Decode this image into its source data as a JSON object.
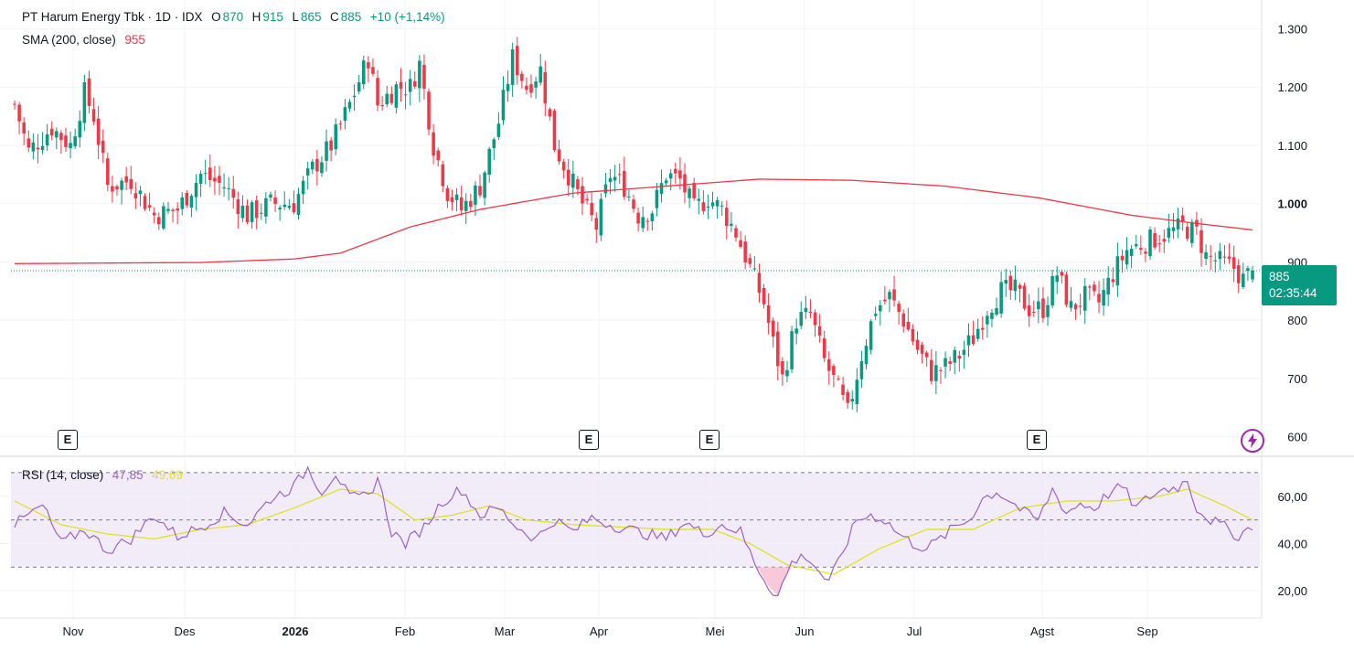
{
  "header": {
    "symbol": "PT Harum Energy Tbk · 1D · IDX",
    "o_label": "O",
    "o_value": "870",
    "h_label": "H",
    "h_value": "915",
    "l_label": "L",
    "l_value": "865",
    "c_label": "C",
    "c_value": "885",
    "change": "+10 (+1,14%)"
  },
  "sma": {
    "label": "SMA (200, close)",
    "value": "955"
  },
  "rsi": {
    "label": "RSI (14, close)",
    "value": "47,85",
    "ma_value": "49,69"
  },
  "last_price": {
    "price": "885",
    "countdown": "02:35:44"
  },
  "earnings_badges": [
    "E",
    "E",
    "E",
    "E"
  ],
  "colors": {
    "up": "#089981",
    "down": "#f23645",
    "sma": "#f23645",
    "rsi": "#9c62c7",
    "rsi_ma": "#e0e22a",
    "rsi_band": "#ede7f6"
  },
  "chart_data": {
    "type": "candlestick",
    "y_ticks": [
      "1.300",
      "1.200",
      "1.100",
      "1.000",
      "900",
      "800",
      "700",
      "600"
    ],
    "ylim": [
      590,
      1340
    ],
    "x_ticks": [
      "Nov",
      "Des",
      "2026",
      "Feb",
      "Mar",
      "Apr",
      "Mei",
      "Jun",
      "Jul",
      "Agst",
      "Sep"
    ],
    "rsi_ticks": [
      "60,00",
      "40,00",
      "20,00"
    ],
    "rsi_ylim": [
      10,
      75
    ],
    "rsi_bands": [
      70,
      50,
      30
    ],
    "price_anchors": [
      {
        "day": 0,
        "close": 1170
      },
      {
        "day": 3,
        "close": 1090
      },
      {
        "day": 8,
        "close": 1130
      },
      {
        "day": 12,
        "close": 1100
      },
      {
        "day": 15,
        "close": 1190
      },
      {
        "day": 17,
        "close": 1150
      },
      {
        "day": 20,
        "close": 1030
      },
      {
        "day": 25,
        "close": 1040
      },
      {
        "day": 30,
        "close": 980
      },
      {
        "day": 35,
        "close": 990
      },
      {
        "day": 40,
        "close": 1050
      },
      {
        "day": 45,
        "close": 1030
      },
      {
        "day": 50,
        "close": 980
      },
      {
        "day": 55,
        "close": 1000
      },
      {
        "day": 60,
        "close": 1000
      },
      {
        "day": 64,
        "close": 1060
      },
      {
        "day": 68,
        "close": 1100
      },
      {
        "day": 72,
        "close": 1170
      },
      {
        "day": 76,
        "close": 1250
      },
      {
        "day": 78,
        "close": 1170
      },
      {
        "day": 82,
        "close": 1200
      },
      {
        "day": 85,
        "close": 1200
      },
      {
        "day": 87,
        "close": 1240
      },
      {
        "day": 90,
        "close": 1100
      },
      {
        "day": 93,
        "close": 1020
      },
      {
        "day": 96,
        "close": 990
      },
      {
        "day": 100,
        "close": 1030
      },
      {
        "day": 104,
        "close": 1140
      },
      {
        "day": 107,
        "close": 1250
      },
      {
        "day": 110,
        "close": 1200
      },
      {
        "day": 113,
        "close": 1230
      },
      {
        "day": 116,
        "close": 1100
      },
      {
        "day": 119,
        "close": 1050
      },
      {
        "day": 122,
        "close": 1000
      },
      {
        "day": 125,
        "close": 960
      },
      {
        "day": 128,
        "close": 1050
      },
      {
        "day": 131,
        "close": 1030
      },
      {
        "day": 134,
        "close": 980
      },
      {
        "day": 137,
        "close": 990
      },
      {
        "day": 140,
        "close": 1050
      },
      {
        "day": 143,
        "close": 1040
      },
      {
        "day": 146,
        "close": 990
      },
      {
        "day": 149,
        "close": 1010
      },
      {
        "day": 152,
        "close": 990
      },
      {
        "day": 155,
        "close": 950
      },
      {
        "day": 158,
        "close": 890
      },
      {
        "day": 161,
        "close": 830
      },
      {
        "day": 163,
        "close": 760
      },
      {
        "day": 165,
        "close": 700
      },
      {
        "day": 168,
        "close": 800
      },
      {
        "day": 171,
        "close": 810
      },
      {
        "day": 174,
        "close": 730
      },
      {
        "day": 177,
        "close": 680
      },
      {
        "day": 179,
        "close": 640
      },
      {
        "day": 182,
        "close": 740
      },
      {
        "day": 185,
        "close": 820
      },
      {
        "day": 188,
        "close": 840
      },
      {
        "day": 191,
        "close": 800
      },
      {
        "day": 194,
        "close": 750
      },
      {
        "day": 197,
        "close": 710
      },
      {
        "day": 200,
        "close": 720
      },
      {
        "day": 203,
        "close": 740
      },
      {
        "day": 206,
        "close": 770
      },
      {
        "day": 209,
        "close": 820
      },
      {
        "day": 212,
        "close": 850
      },
      {
        "day": 215,
        "close": 850
      },
      {
        "day": 218,
        "close": 820
      },
      {
        "day": 221,
        "close": 820
      },
      {
        "day": 224,
        "close": 880
      },
      {
        "day": 227,
        "close": 820
      },
      {
        "day": 230,
        "close": 840
      },
      {
        "day": 233,
        "close": 830
      },
      {
        "day": 236,
        "close": 880
      },
      {
        "day": 239,
        "close": 920
      },
      {
        "day": 242,
        "close": 930
      },
      {
        "day": 245,
        "close": 940
      },
      {
        "day": 248,
        "close": 950
      },
      {
        "day": 251,
        "close": 960
      },
      {
        "day": 254,
        "close": 950
      },
      {
        "day": 256,
        "close": 910
      },
      {
        "day": 259,
        "close": 900
      },
      {
        "day": 262,
        "close": 890
      },
      {
        "day": 264,
        "close": 870
      },
      {
        "day": 266,
        "close": 885
      }
    ],
    "sma_anchors": [
      {
        "day": 0,
        "value": 897
      },
      {
        "day": 20,
        "value": 898
      },
      {
        "day": 40,
        "value": 899
      },
      {
        "day": 60,
        "value": 905
      },
      {
        "day": 70,
        "value": 915
      },
      {
        "day": 85,
        "value": 960
      },
      {
        "day": 100,
        "value": 990
      },
      {
        "day": 120,
        "value": 1018
      },
      {
        "day": 140,
        "value": 1030
      },
      {
        "day": 160,
        "value": 1042
      },
      {
        "day": 180,
        "value": 1040
      },
      {
        "day": 200,
        "value": 1030
      },
      {
        "day": 220,
        "value": 1010
      },
      {
        "day": 240,
        "value": 980
      },
      {
        "day": 255,
        "value": 965
      },
      {
        "day": 266,
        "value": 955
      }
    ],
    "rsi_anchors": [
      {
        "day": 0,
        "value": 48
      },
      {
        "day": 6,
        "value": 56
      },
      {
        "day": 10,
        "value": 40
      },
      {
        "day": 15,
        "value": 46
      },
      {
        "day": 20,
        "value": 37
      },
      {
        "day": 25,
        "value": 42
      },
      {
        "day": 30,
        "value": 52
      },
      {
        "day": 35,
        "value": 43
      },
      {
        "day": 40,
        "value": 47
      },
      {
        "day": 45,
        "value": 53
      },
      {
        "day": 50,
        "value": 48
      },
      {
        "day": 55,
        "value": 59
      },
      {
        "day": 60,
        "value": 64
      },
      {
        "day": 63,
        "value": 72
      },
      {
        "day": 66,
        "value": 62
      },
      {
        "day": 69,
        "value": 70
      },
      {
        "day": 72,
        "value": 59
      },
      {
        "day": 76,
        "value": 60
      },
      {
        "day": 78,
        "value": 68
      },
      {
        "day": 81,
        "value": 45
      },
      {
        "day": 84,
        "value": 40
      },
      {
        "day": 88,
        "value": 47
      },
      {
        "day": 92,
        "value": 58
      },
      {
        "day": 96,
        "value": 63
      },
      {
        "day": 100,
        "value": 52
      },
      {
        "day": 104,
        "value": 55
      },
      {
        "day": 108,
        "value": 47
      },
      {
        "day": 112,
        "value": 42
      },
      {
        "day": 116,
        "value": 50
      },
      {
        "day": 120,
        "value": 45
      },
      {
        "day": 124,
        "value": 51
      },
      {
        "day": 128,
        "value": 48
      },
      {
        "day": 132,
        "value": 46
      },
      {
        "day": 136,
        "value": 44
      },
      {
        "day": 140,
        "value": 42
      },
      {
        "day": 144,
        "value": 49
      },
      {
        "day": 148,
        "value": 44
      },
      {
        "day": 152,
        "value": 48
      },
      {
        "day": 156,
        "value": 45
      },
      {
        "day": 159,
        "value": 32
      },
      {
        "day": 162,
        "value": 22
      },
      {
        "day": 164,
        "value": 18
      },
      {
        "day": 167,
        "value": 32
      },
      {
        "day": 170,
        "value": 35
      },
      {
        "day": 173,
        "value": 28
      },
      {
        "day": 175,
        "value": 23
      },
      {
        "day": 178,
        "value": 37
      },
      {
        "day": 181,
        "value": 50
      },
      {
        "day": 184,
        "value": 52
      },
      {
        "day": 187,
        "value": 50
      },
      {
        "day": 190,
        "value": 44
      },
      {
        "day": 193,
        "value": 40
      },
      {
        "day": 196,
        "value": 38
      },
      {
        "day": 199,
        "value": 42
      },
      {
        "day": 202,
        "value": 47
      },
      {
        "day": 205,
        "value": 50
      },
      {
        "day": 208,
        "value": 59
      },
      {
        "day": 211,
        "value": 62
      },
      {
        "day": 214,
        "value": 58
      },
      {
        "day": 217,
        "value": 53
      },
      {
        "day": 220,
        "value": 50
      },
      {
        "day": 223,
        "value": 63
      },
      {
        "day": 226,
        "value": 53
      },
      {
        "day": 229,
        "value": 57
      },
      {
        "day": 232,
        "value": 55
      },
      {
        "day": 235,
        "value": 61
      },
      {
        "day": 238,
        "value": 64
      },
      {
        "day": 241,
        "value": 55
      },
      {
        "day": 244,
        "value": 60
      },
      {
        "day": 247,
        "value": 63
      },
      {
        "day": 250,
        "value": 64
      },
      {
        "day": 252,
        "value": 67
      },
      {
        "day": 254,
        "value": 55
      },
      {
        "day": 257,
        "value": 50
      },
      {
        "day": 260,
        "value": 47
      },
      {
        "day": 263,
        "value": 43
      },
      {
        "day": 266,
        "value": 48
      }
    ],
    "rsi_ma_anchors": [
      {
        "day": 0,
        "value": 58
      },
      {
        "day": 10,
        "value": 48
      },
      {
        "day": 20,
        "value": 44
      },
      {
        "day": 30,
        "value": 42
      },
      {
        "day": 40,
        "value": 46
      },
      {
        "day": 50,
        "value": 48
      },
      {
        "day": 60,
        "value": 55
      },
      {
        "day": 70,
        "value": 63
      },
      {
        "day": 78,
        "value": 61
      },
      {
        "day": 86,
        "value": 50
      },
      {
        "day": 94,
        "value": 52
      },
      {
        "day": 102,
        "value": 56
      },
      {
        "day": 110,
        "value": 50
      },
      {
        "day": 120,
        "value": 48
      },
      {
        "day": 130,
        "value": 47
      },
      {
        "day": 140,
        "value": 46
      },
      {
        "day": 150,
        "value": 46
      },
      {
        "day": 158,
        "value": 40
      },
      {
        "day": 166,
        "value": 31
      },
      {
        "day": 176,
        "value": 27
      },
      {
        "day": 186,
        "value": 38
      },
      {
        "day": 196,
        "value": 46
      },
      {
        "day": 206,
        "value": 46
      },
      {
        "day": 216,
        "value": 55
      },
      {
        "day": 226,
        "value": 58
      },
      {
        "day": 236,
        "value": 58
      },
      {
        "day": 246,
        "value": 60
      },
      {
        "day": 252,
        "value": 63
      },
      {
        "day": 260,
        "value": 56
      },
      {
        "day": 266,
        "value": 50
      }
    ]
  }
}
